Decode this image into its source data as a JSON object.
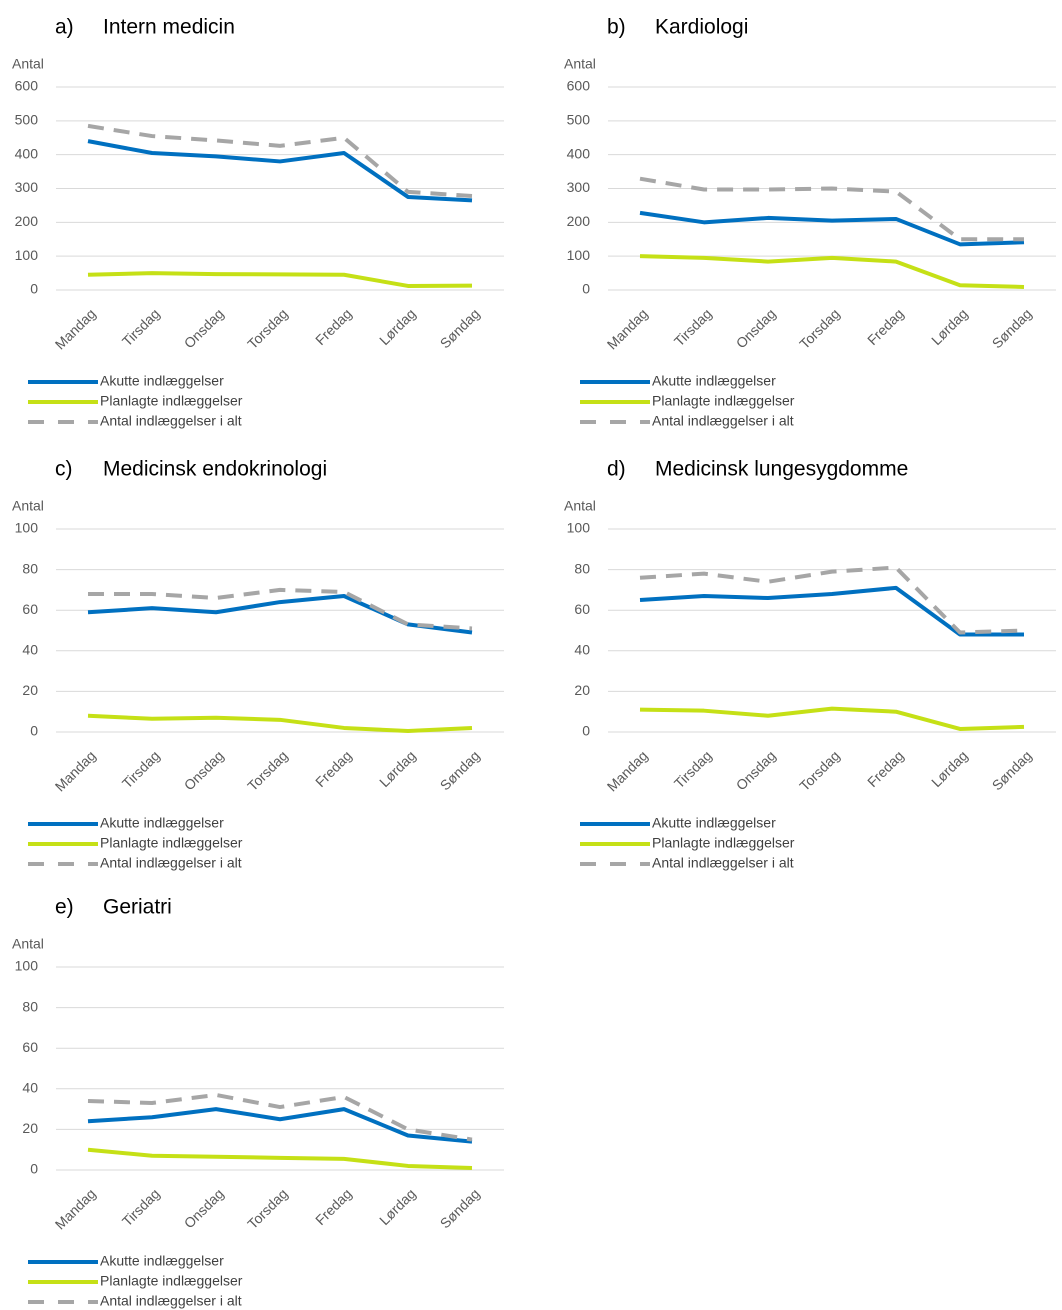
{
  "chart_data": [
    {
      "type": "line",
      "panel": "a)",
      "title": "Intern medicin",
      "y_label": "Antal",
      "categories": [
        "Mandag",
        "Tirsdag",
        "Onsdag",
        "Torsdag",
        "Fredag",
        "Lørdag",
        "Søndag"
      ],
      "ylim": [
        0,
        600
      ],
      "yticks": [
        0,
        100,
        200,
        300,
        400,
        500,
        600
      ],
      "grid": true,
      "series": [
        {
          "name": "Akutte indlæggelser",
          "color": "#0070c0",
          "dash": false,
          "values": [
            440,
            405,
            395,
            380,
            405,
            275,
            265
          ]
        },
        {
          "name": "Planlagte indlæggelser",
          "color": "#c5e016",
          "dash": false,
          "values": [
            45,
            50,
            47,
            46,
            45,
            12,
            13
          ]
        },
        {
          "name": "Antal indlæggelser i alt",
          "color": "#a6a6a6",
          "dash": true,
          "values": [
            485,
            455,
            442,
            426,
            450,
            290,
            278
          ]
        }
      ]
    },
    {
      "type": "line",
      "panel": "b)",
      "title": "Kardiologi",
      "y_label": "Antal",
      "categories": [
        "Mandag",
        "Tirsdag",
        "Onsdag",
        "Torsdag",
        "Fredag",
        "Lørdag",
        "Søndag"
      ],
      "ylim": [
        0,
        600
      ],
      "yticks": [
        0,
        100,
        200,
        300,
        400,
        500,
        600
      ],
      "grid": true,
      "series": [
        {
          "name": "Akutte indlæggelser",
          "color": "#0070c0",
          "dash": false,
          "values": [
            228,
            200,
            213,
            205,
            210,
            135,
            141
          ]
        },
        {
          "name": "Planlagte indlæggelser",
          "color": "#c5e016",
          "dash": false,
          "values": [
            100,
            95,
            84,
            95,
            84,
            14,
            9
          ]
        },
        {
          "name": "Antal indlæggelser i alt",
          "color": "#a6a6a6",
          "dash": true,
          "values": [
            329,
            297,
            297,
            300,
            291,
            150,
            150
          ]
        }
      ]
    },
    {
      "type": "line",
      "panel": "c)",
      "title": "Medicinsk endokrinologi",
      "y_label": "Antal",
      "categories": [
        "Mandag",
        "Tirsdag",
        "Onsdag",
        "Torsdag",
        "Fredag",
        "Lørdag",
        "Søndag"
      ],
      "ylim": [
        0,
        100
      ],
      "yticks": [
        0,
        20,
        40,
        60,
        80,
        100
      ],
      "grid": true,
      "series": [
        {
          "name": "Akutte indlæggelser",
          "color": "#0070c0",
          "dash": false,
          "values": [
            59,
            61,
            59,
            64,
            67,
            53,
            49
          ]
        },
        {
          "name": "Planlagte indlæggelser",
          "color": "#c5e016",
          "dash": false,
          "values": [
            8,
            6.5,
            7,
            6,
            2,
            0.5,
            2
          ]
        },
        {
          "name": "Antal indlæggelser i alt",
          "color": "#a6a6a6",
          "dash": true,
          "values": [
            68,
            68,
            66,
            70,
            69,
            53,
            51
          ]
        }
      ]
    },
    {
      "type": "line",
      "panel": "d)",
      "title": "Medicinsk lungesygdomme",
      "y_label": "Antal",
      "categories": [
        "Mandag",
        "Tirsdag",
        "Onsdag",
        "Torsdag",
        "Fredag",
        "Lørdag",
        "Søndag"
      ],
      "ylim": [
        0,
        100
      ],
      "yticks": [
        0,
        20,
        40,
        60,
        80,
        100
      ],
      "grid": true,
      "series": [
        {
          "name": "Akutte indlæggelser",
          "color": "#0070c0",
          "dash": false,
          "values": [
            65,
            67,
            66,
            68,
            71,
            48,
            48
          ]
        },
        {
          "name": "Planlagte indlæggelser",
          "color": "#c5e016",
          "dash": false,
          "values": [
            11,
            10.5,
            8,
            11.5,
            10,
            1.5,
            2.5
          ]
        },
        {
          "name": "Antal indlæggelser i alt",
          "color": "#a6a6a6",
          "dash": true,
          "values": [
            76,
            78,
            74,
            79,
            81,
            49,
            50
          ]
        }
      ]
    },
    {
      "type": "line",
      "panel": "e)",
      "title": "Geriatri",
      "y_label": "Antal",
      "categories": [
        "Mandag",
        "Tirsdag",
        "Onsdag",
        "Torsdag",
        "Fredag",
        "Lørdag",
        "Søndag"
      ],
      "ylim": [
        0,
        100
      ],
      "yticks": [
        0,
        20,
        40,
        60,
        80,
        100
      ],
      "grid": true,
      "series": [
        {
          "name": "Akutte indlæggelser",
          "color": "#0070c0",
          "dash": false,
          "values": [
            24,
            26,
            30,
            25,
            30,
            17,
            14
          ]
        },
        {
          "name": "Planlagte indlæggelser",
          "color": "#c5e016",
          "dash": false,
          "values": [
            10,
            7,
            6.5,
            6,
            5.5,
            2,
            1
          ]
        },
        {
          "name": "Antal indlæggelser i alt",
          "color": "#a6a6a6",
          "dash": true,
          "values": [
            34,
            33,
            37,
            31,
            36,
            20,
            15
          ]
        }
      ]
    }
  ]
}
